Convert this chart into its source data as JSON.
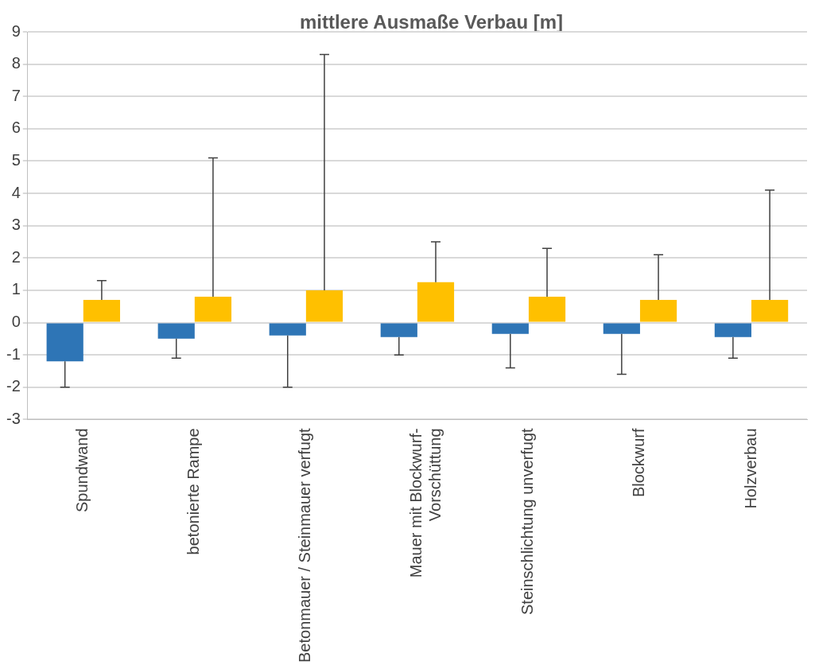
{
  "chart_data": {
    "type": "bar",
    "title": "mittlere Ausmaße Verbau [m]",
    "categories": [
      "Spundwand",
      "betonierte Rampe",
      "Betonmauer / Steinmauer verfugt",
      "Mauer mit Blockwurf-Vorschüttung",
      "Steinschlichtung unverfugt",
      "Blockwurf",
      "Holzverbau"
    ],
    "series": [
      {
        "color": "#2e75b6",
        "values": [
          -1.2,
          -0.5,
          -0.4,
          -0.45,
          -0.35,
          -0.35,
          -0.45
        ],
        "errors": [
          [
            -2.0,
            -1.2
          ],
          [
            -1.1,
            -0.5
          ],
          [
            -2.0,
            -0.4
          ],
          [
            -1.0,
            -0.45
          ],
          [
            -1.4,
            -0.35
          ],
          [
            -1.6,
            -0.35
          ],
          [
            -1.1,
            -0.45
          ]
        ]
      },
      {
        "color": "#ffc000",
        "values": [
          0.7,
          0.8,
          1.0,
          1.25,
          0.8,
          0.7,
          0.7
        ],
        "errors": [
          [
            0.7,
            1.3
          ],
          [
            0.8,
            5.1
          ],
          [
            1.0,
            8.3
          ],
          [
            1.25,
            2.5
          ],
          [
            0.8,
            2.3
          ],
          [
            0.7,
            2.1
          ],
          [
            0.7,
            4.1
          ]
        ]
      }
    ],
    "ylim": [
      -3,
      9
    ],
    "yticks": [
      -3,
      -2,
      -1,
      0,
      1,
      2,
      3,
      4,
      5,
      6,
      7,
      8,
      9
    ],
    "grid": "y",
    "legend": false
  }
}
